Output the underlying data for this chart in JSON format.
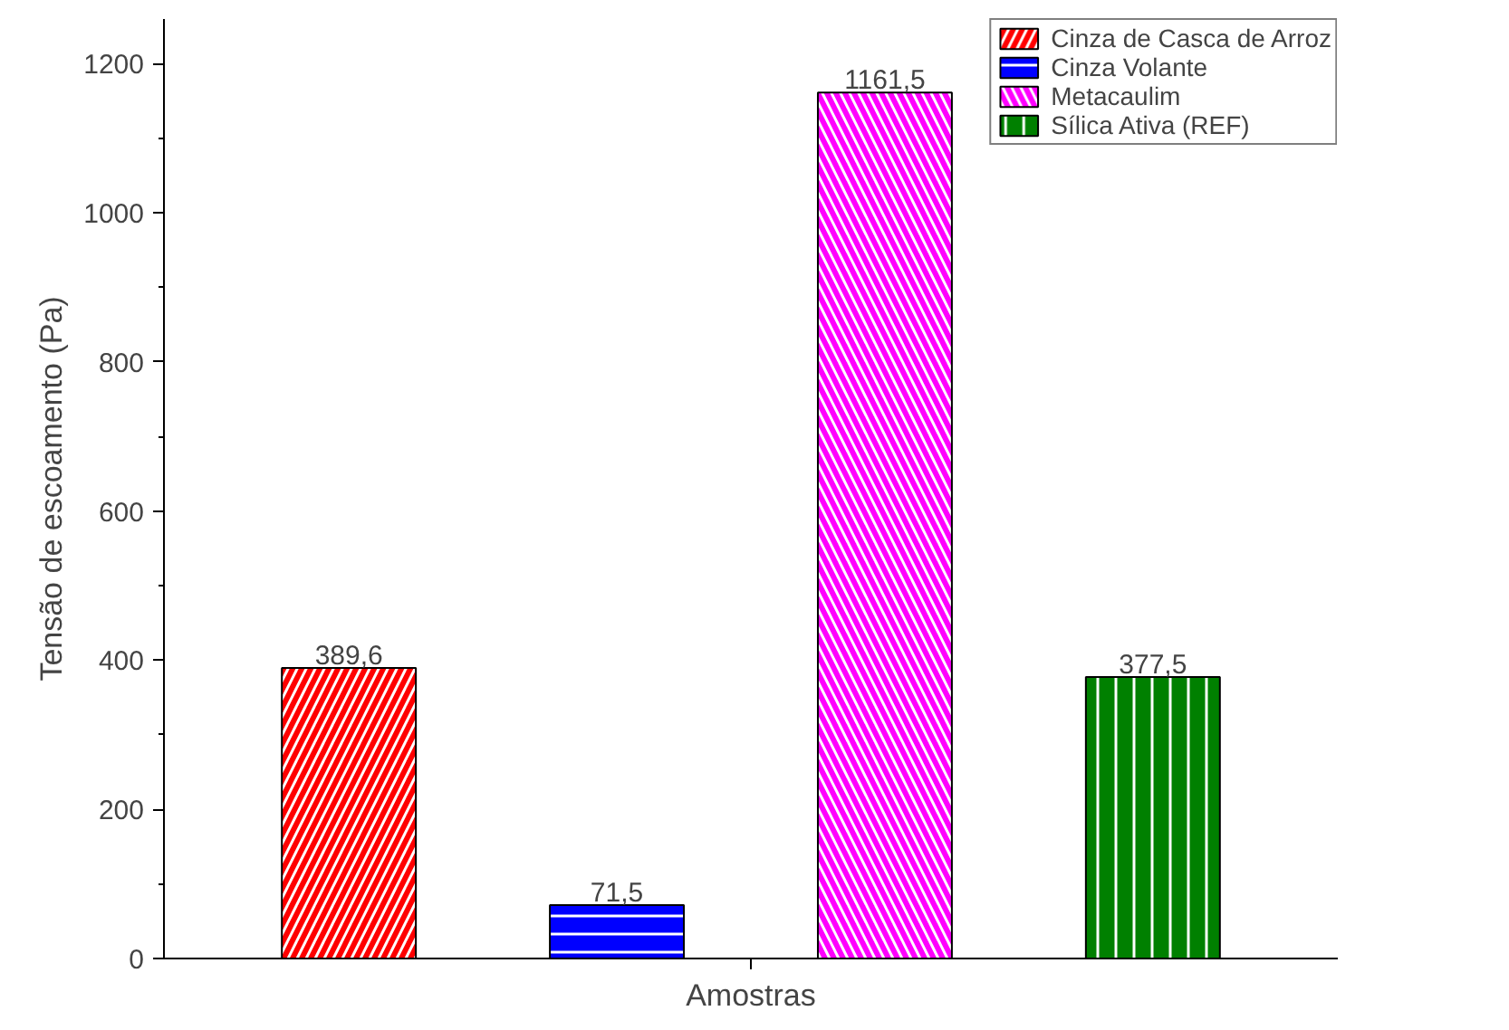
{
  "chart_data": {
    "type": "bar",
    "xlabel": "Amostras",
    "ylabel": "Tensão de escoamento (Pa)",
    "categories": [
      null,
      null,
      null,
      null
    ],
    "series": [
      {
        "name": "Cinza de Casca de Arroz",
        "color": "#ff0000",
        "values": [
          389.6,
          null,
          null,
          null
        ],
        "value_labels": [
          "389,6",
          null,
          null,
          null
        ]
      },
      {
        "name": "Cinza Volante",
        "color": "#0000ff",
        "values": [
          null,
          71.5,
          null,
          null
        ],
        "value_labels": [
          null,
          "71,5",
          null,
          null
        ]
      },
      {
        "name": "Metacaulim",
        "color": "#ff00ff",
        "values": [
          null,
          null,
          1161.5,
          null
        ],
        "value_labels": [
          null,
          null,
          "1161,5",
          null
        ]
      },
      {
        "name": "Sílica Ativa (REF)",
        "color": "#008000",
        "values": [
          null,
          null,
          null,
          377.5
        ],
        "value_labels": [
          null,
          null,
          null,
          "377,5"
        ]
      }
    ],
    "ylim": [
      0,
      1260
    ],
    "yticks": [
      0,
      200,
      400,
      600,
      800,
      1000,
      1200
    ],
    "grid": false,
    "legend": "top right"
  }
}
